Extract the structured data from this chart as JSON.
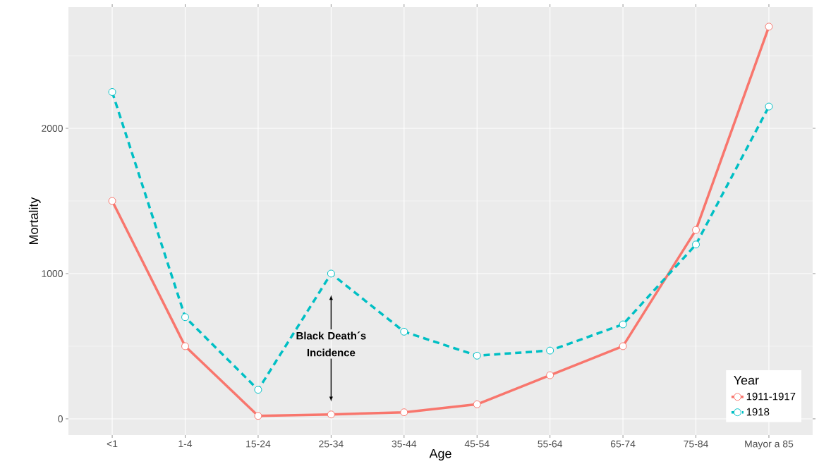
{
  "chart_data": {
    "type": "line",
    "xlabel": "Age",
    "ylabel": "Mortality",
    "legend_title": "Year",
    "categories": [
      "<1",
      "1-4",
      "15-24",
      "25-34",
      "35-44",
      "45-54",
      "55-64",
      "65-74",
      "75-84",
      "Mayor a 85"
    ],
    "series": [
      {
        "name": "1911-1917",
        "color": "#F8766D",
        "line_style": "solid",
        "values": [
          1500,
          500,
          20,
          30,
          45,
          100,
          300,
          500,
          1300,
          2700
        ]
      },
      {
        "name": "1918",
        "color": "#00BFC4",
        "line_style": "dashed",
        "values": [
          2250,
          700,
          200,
          1000,
          600,
          435,
          470,
          650,
          1200,
          2150
        ]
      }
    ],
    "ylim": [
      -112,
      2835
    ],
    "yticks": [
      0,
      1000,
      2000
    ],
    "grid": true,
    "legend": "bottom right",
    "marker": "circle",
    "annotations": [
      "Black Death´s Incidence"
    ]
  }
}
